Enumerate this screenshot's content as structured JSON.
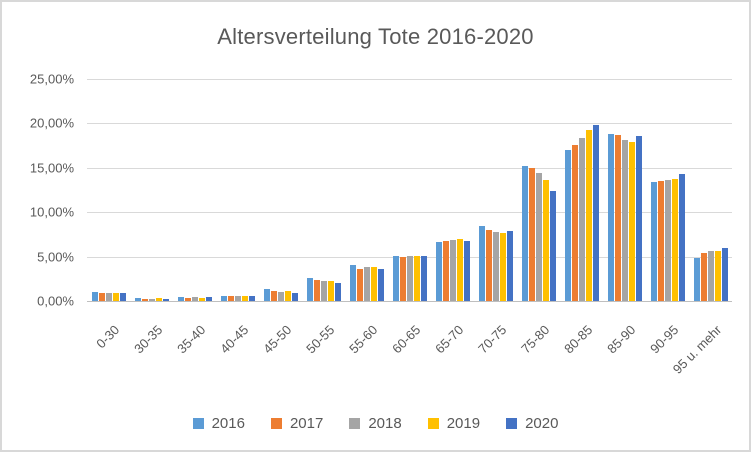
{
  "chart_data": {
    "type": "bar",
    "title": "Altersverteilung Tote 2016-2020",
    "xlabel": "",
    "ylabel": "",
    "categories": [
      "0-30",
      "30-35",
      "35-40",
      "40-45",
      "45-50",
      "50-55",
      "55-60",
      "60-65",
      "65-70",
      "70-75",
      "75-80",
      "80-85",
      "85-90",
      "90-95",
      "95 u. mehr"
    ],
    "series": [
      {
        "name": "2016",
        "color": "#5B9BD5",
        "values": [
          1.0,
          0.3,
          0.45,
          0.6,
          1.4,
          2.55,
          4.0,
          5.1,
          6.6,
          8.5,
          15.2,
          17.0,
          18.8,
          13.4,
          4.8
        ]
      },
      {
        "name": "2017",
        "color": "#ED7D31",
        "values": [
          0.9,
          0.28,
          0.38,
          0.57,
          1.15,
          2.35,
          3.65,
          4.9,
          6.75,
          8.0,
          15.0,
          17.6,
          18.7,
          13.5,
          5.35
        ]
      },
      {
        "name": "2018",
        "color": "#A5A5A5",
        "values": [
          0.9,
          0.28,
          0.42,
          0.55,
          1.05,
          2.3,
          3.8,
          5.05,
          6.9,
          7.8,
          14.4,
          18.4,
          18.1,
          13.6,
          5.6
        ]
      },
      {
        "name": "2019",
        "color": "#FFC000",
        "values": [
          0.9,
          0.3,
          0.38,
          0.55,
          1.1,
          2.2,
          3.85,
          5.1,
          7.0,
          7.7,
          13.6,
          19.3,
          17.9,
          13.7,
          5.65
        ]
      },
      {
        "name": "2020",
        "color": "#4472C4",
        "values": [
          0.95,
          0.25,
          0.42,
          0.57,
          0.85,
          2.0,
          3.55,
          5.1,
          6.8,
          7.9,
          12.4,
          19.8,
          18.6,
          14.3,
          6.0
        ]
      }
    ],
    "ylim": [
      0,
      25
    ],
    "ytick_step": 5,
    "ytick_labels": [
      "0,00%",
      "5,00%",
      "10,00%",
      "15,00%",
      "20,00%",
      "25,00%"
    ],
    "grid": true,
    "legend_position": "bottom"
  },
  "layout_colors": {
    "gridline": "#d9d9d9",
    "axis_line": "#bfbfbf",
    "text": "#595959",
    "frame_border": "#d8d8d8"
  }
}
